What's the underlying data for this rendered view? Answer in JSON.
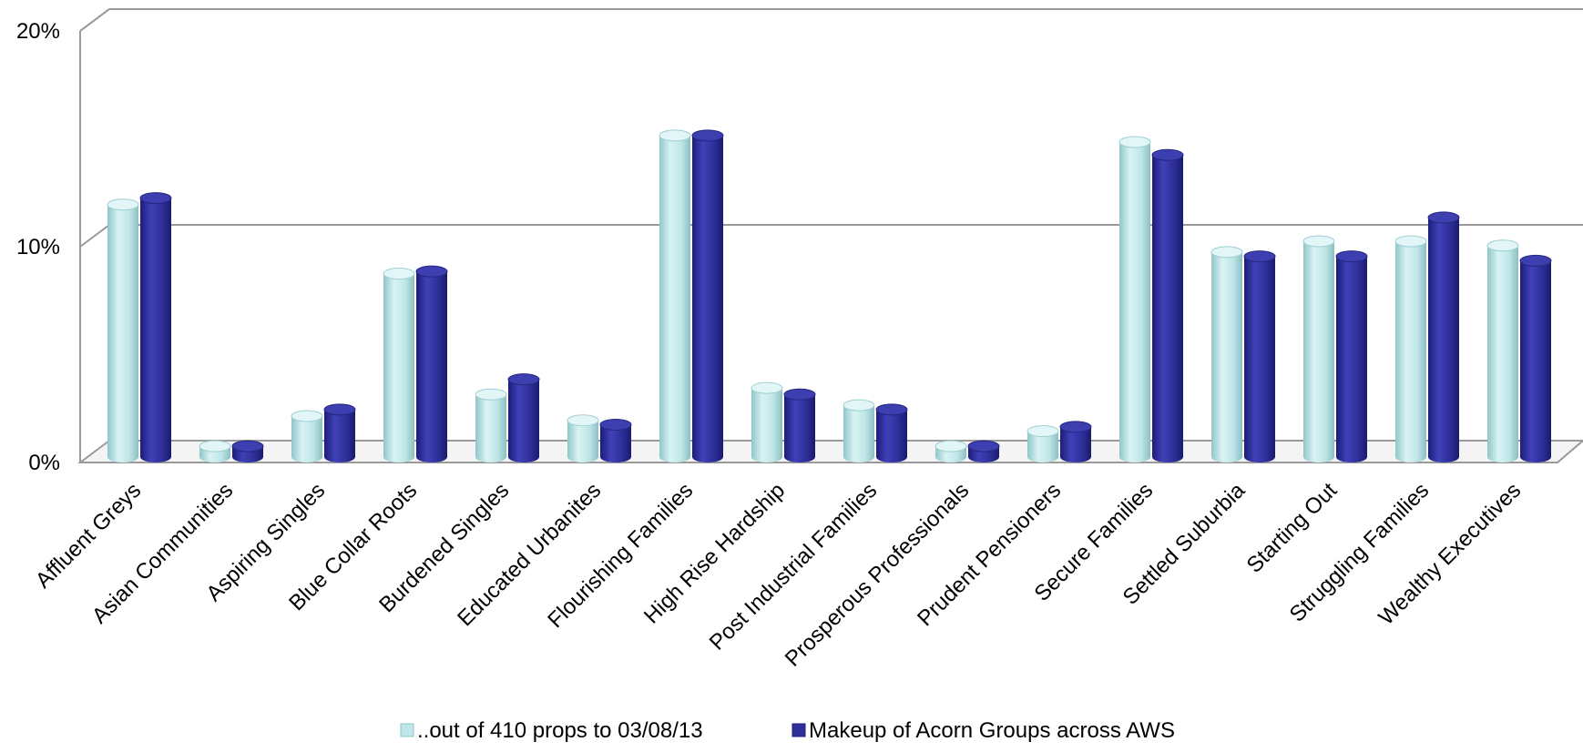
{
  "chart_data": {
    "type": "bar",
    "title": "",
    "xlabel": "",
    "ylabel": "",
    "ylim": [
      0,
      20
    ],
    "yticks": [
      "0%",
      "10%",
      "20%"
    ],
    "grid": true,
    "legend_position": "bottom",
    "categories": [
      "Affluent Greys",
      "Asian Communities",
      "Aspiring Singles",
      "Blue Collar Roots",
      "Burdened Singles",
      "Educated Urbanites",
      "Flourishing Families",
      "High Rise Hardship",
      "Post Industrial Families",
      "Prosperous Professionals",
      "Prudent Pensioners",
      "Secure Families",
      "Settled Suburbia",
      "Starting Out",
      "Struggling Families",
      "Wealthy Executives"
    ],
    "series": [
      {
        "name": "..out of 410 props to 03/08/13",
        "color": "#bfe6e8",
        "values": [
          11.7,
          0.5,
          1.9,
          8.5,
          2.9,
          1.7,
          14.9,
          3.2,
          2.4,
          0.5,
          1.2,
          14.6,
          9.5,
          10.0,
          10.0,
          9.8
        ]
      },
      {
        "name": "Makeup of Acorn Groups across AWS",
        "color": "#2e2f99",
        "values": [
          12.0,
          0.5,
          2.2,
          8.6,
          3.6,
          1.5,
          14.9,
          2.9,
          2.2,
          0.5,
          1.4,
          14.0,
          9.3,
          9.3,
          11.1,
          9.1
        ]
      }
    ]
  }
}
